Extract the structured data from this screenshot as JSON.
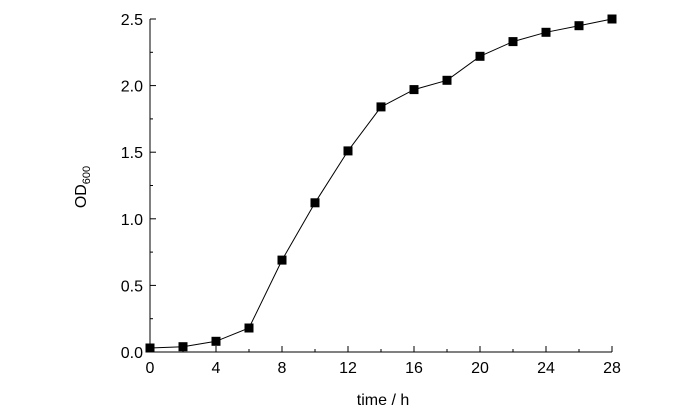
{
  "chart_data": {
    "type": "line",
    "xlabel": "time / h",
    "ylabel_main": "OD",
    "ylabel_sub": "600",
    "xlim": [
      0,
      28
    ],
    "ylim": [
      0,
      2.5
    ],
    "x_ticks": [
      0,
      4,
      8,
      12,
      16,
      20,
      24,
      28
    ],
    "x_tick_labels": [
      "0",
      "4",
      "8",
      "12",
      "16",
      "20",
      "24",
      "28"
    ],
    "y_ticks": [
      0,
      0.5,
      1.0,
      1.5,
      2.0,
      2.5
    ],
    "y_tick_labels": [
      "0.0",
      "0.5",
      "1.0",
      "1.5",
      "2.0",
      "2.5"
    ],
    "grid": false,
    "series": [
      {
        "marker": "square",
        "color": "#000000",
        "x": [
          0,
          2,
          4,
          6,
          8,
          10,
          12,
          14,
          16,
          18,
          20,
          22,
          24,
          26,
          28
        ],
        "y": [
          0.03,
          0.04,
          0.08,
          0.18,
          0.69,
          1.12,
          1.51,
          1.84,
          1.97,
          2.04,
          2.22,
          2.33,
          2.4,
          2.45,
          2.5
        ]
      }
    ]
  }
}
